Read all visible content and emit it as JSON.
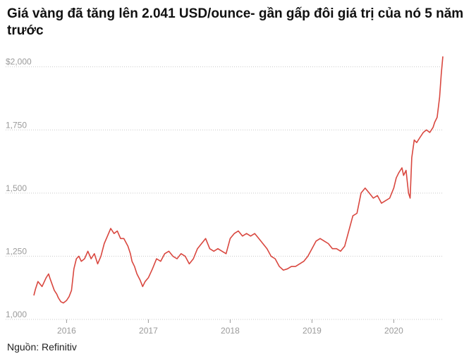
{
  "title": "Giá vàng đã tăng lên 2.041 USD/ounce- gần gấp đôi giá trị của nó 5 năm trước",
  "source": "Nguồn: Refinitiv",
  "colors": {
    "line": "#d9473f",
    "grid": "#c9c9c9",
    "tick_text": "#9a9a9a"
  },
  "chart_data": {
    "type": "line",
    "title": "Giá vàng đã tăng lên 2.041 USD/ounce- gần gấp đôi giá trị của nó 5 năm trước",
    "xlabel": "",
    "ylabel": "",
    "ylim": [
      1000,
      2041
    ],
    "xlim": [
      2015.6,
      2020.6
    ],
    "y_ticks": [
      {
        "value": 2000,
        "label": "$2,000"
      },
      {
        "value": 1750,
        "label": "1,750"
      },
      {
        "value": 1500,
        "label": "1,500"
      },
      {
        "value": 1250,
        "label": "1,250"
      },
      {
        "value": 1000,
        "label": "1,000"
      }
    ],
    "x_ticks": [
      {
        "value": 2016,
        "label": "2016"
      },
      {
        "value": 2017,
        "label": "2017"
      },
      {
        "value": 2018,
        "label": "2018"
      },
      {
        "value": 2019,
        "label": "2019"
      },
      {
        "value": 2020,
        "label": "2020"
      }
    ],
    "grid": "horizontal",
    "series": [
      {
        "x": [
          2015.6,
          2015.62,
          2015.65,
          2015.7,
          2015.75,
          2015.78,
          2015.8,
          2015.85,
          2015.88,
          2015.9,
          2015.93,
          2015.96,
          2016.0,
          2016.03,
          2016.06,
          2016.09,
          2016.12,
          2016.15,
          2016.18,
          2016.22,
          2016.26,
          2016.3,
          2016.34,
          2016.38,
          2016.42,
          2016.46,
          2016.5,
          2016.54,
          2016.58,
          2016.62,
          2016.66,
          2016.7,
          2016.75,
          2016.78,
          2016.8,
          2016.83,
          2016.86,
          2016.9,
          2016.93,
          2016.96,
          2017.0,
          2017.05,
          2017.1,
          2017.15,
          2017.2,
          2017.25,
          2017.3,
          2017.35,
          2017.4,
          2017.45,
          2017.5,
          2017.55,
          2017.6,
          2017.65,
          2017.7,
          2017.75,
          2017.8,
          2017.85,
          2017.9,
          2017.95,
          2018.0,
          2018.05,
          2018.1,
          2018.15,
          2018.2,
          2018.25,
          2018.3,
          2018.35,
          2018.4,
          2018.45,
          2018.5,
          2018.55,
          2018.6,
          2018.65,
          2018.7,
          2018.75,
          2018.8,
          2018.85,
          2018.9,
          2018.95,
          2019.0,
          2019.05,
          2019.1,
          2019.15,
          2019.2,
          2019.25,
          2019.3,
          2019.35,
          2019.4,
          2019.45,
          2019.5,
          2019.55,
          2019.6,
          2019.65,
          2019.7,
          2019.75,
          2019.8,
          2019.85,
          2019.9,
          2019.95,
          2020.0,
          2020.03,
          2020.06,
          2020.1,
          2020.12,
          2020.15,
          2020.18,
          2020.2,
          2020.22,
          2020.25,
          2020.28,
          2020.32,
          2020.36,
          2020.4,
          2020.44,
          2020.48,
          2020.5,
          2020.53,
          2020.56,
          2020.58,
          2020.6
        ],
        "values": [
          1095,
          1120,
          1150,
          1130,
          1165,
          1180,
          1160,
          1115,
          1100,
          1085,
          1070,
          1065,
          1075,
          1090,
          1115,
          1200,
          1240,
          1250,
          1230,
          1240,
          1270,
          1240,
          1260,
          1220,
          1250,
          1300,
          1330,
          1360,
          1340,
          1350,
          1320,
          1320,
          1290,
          1260,
          1230,
          1210,
          1180,
          1155,
          1130,
          1150,
          1165,
          1200,
          1240,
          1230,
          1260,
          1270,
          1250,
          1240,
          1260,
          1250,
          1220,
          1240,
          1280,
          1300,
          1320,
          1280,
          1270,
          1280,
          1270,
          1260,
          1320,
          1340,
          1350,
          1330,
          1340,
          1330,
          1340,
          1320,
          1300,
          1280,
          1250,
          1240,
          1210,
          1195,
          1200,
          1210,
          1210,
          1220,
          1230,
          1250,
          1280,
          1310,
          1320,
          1310,
          1300,
          1280,
          1280,
          1270,
          1290,
          1350,
          1410,
          1420,
          1500,
          1520,
          1500,
          1480,
          1490,
          1460,
          1470,
          1480,
          1520,
          1560,
          1580,
          1600,
          1570,
          1590,
          1500,
          1480,
          1640,
          1710,
          1700,
          1720,
          1740,
          1750,
          1740,
          1760,
          1780,
          1800,
          1880,
          1970,
          2041
        ]
      }
    ]
  }
}
